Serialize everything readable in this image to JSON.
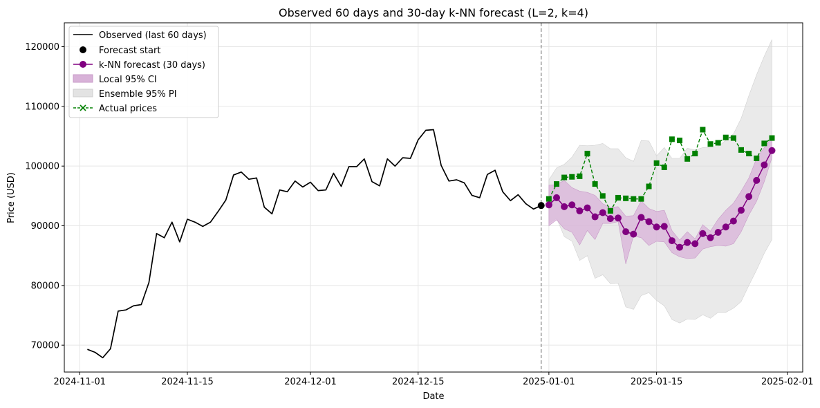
{
  "chart_data": {
    "type": "line",
    "title": "Observed 60 days and 30-day k-NN forecast (L=2, k=4)",
    "xlabel": "Date",
    "ylabel": "Price (USD)",
    "xlim": [
      "2024-10-30",
      "2025-02-03"
    ],
    "ylim": [
      65500,
      124000
    ],
    "grid": true,
    "legend_position": "top-left",
    "x_ticks": [
      "2024-11-01",
      "2024-11-15",
      "2024-12-01",
      "2024-12-15",
      "2025-01-01",
      "2025-01-15",
      "2025-02-01"
    ],
    "y_ticks": [
      70000,
      80000,
      90000,
      100000,
      110000,
      120000
    ],
    "forecast_start_line": "2024-12-31",
    "colors": {
      "observed": "#000000",
      "forecast": "#800080",
      "actual": "#008000",
      "local_ci": "#d8b2d8",
      "ensemble_pi": "#d9d9d9",
      "grid": "#e6e6e6",
      "vline": "#808080"
    },
    "observed": {
      "name": "Observed (last 60 days)",
      "start": "2024-11-02",
      "values": [
        69300,
        68800,
        67900,
        69400,
        75700,
        75900,
        76600,
        76800,
        80500,
        88700,
        88000,
        90600,
        87300,
        91100,
        90600,
        89900,
        90600,
        92400,
        94300,
        98500,
        99000,
        97800,
        98000,
        93100,
        92000,
        96000,
        95700,
        97500,
        96500,
        97300,
        95900,
        96000,
        98800,
        96600,
        99900,
        99900,
        101200,
        97400,
        96700,
        101200,
        100000,
        101400,
        101300,
        104400,
        106000,
        106100,
        100100,
        97500,
        97700,
        97200,
        95100,
        94700,
        98600,
        99300,
        95700,
        94200,
        95200,
        93700,
        92800,
        93400
      ]
    },
    "forecast_start": {
      "name": "Forecast start",
      "date": "2024-12-31",
      "value": 93400
    },
    "forecast": {
      "name": "k-NN forecast (30 days)",
      "start": "2025-01-01",
      "values": [
        93500,
        94700,
        93200,
        93500,
        92500,
        93000,
        91500,
        92200,
        91200,
        91300,
        89000,
        88600,
        91400,
        90700,
        89800,
        89900,
        87500,
        86400,
        87200,
        87000,
        88700,
        88000,
        88900,
        89800,
        90800,
        92600,
        94900,
        97600,
        100200,
        102600
      ],
      "local_ci": {
        "name": "Local 95% CI",
        "lower": [
          90000,
          91000,
          89500,
          88900,
          86800,
          89200,
          87700,
          90400,
          90400,
          90700,
          83600,
          88300,
          88000,
          86700,
          87400,
          87300,
          85500,
          84800,
          84500,
          84600,
          86100,
          86500,
          86700,
          86600,
          87000,
          89000,
          91800,
          94100,
          97400,
          101400
        ],
        "upper": [
          96800,
          96900,
          97600,
          96400,
          95800,
          95600,
          95100,
          93700,
          93100,
          93200,
          91600,
          91700,
          94200,
          92900,
          92400,
          92600,
          89200,
          87600,
          89000,
          87800,
          90200,
          89100,
          91100,
          92600,
          93800,
          95800,
          98000,
          101300,
          103100,
          104800
        ]
      },
      "ensemble_pi": {
        "name": "Ensemble 95% PI",
        "lower": [
          90400,
          91300,
          88200,
          87400,
          84200,
          85000,
          81200,
          81800,
          80300,
          80400,
          76400,
          76000,
          78300,
          78800,
          77500,
          76600,
          74300,
          73700,
          74400,
          74300,
          75100,
          74500,
          75500,
          75500,
          76200,
          77300,
          80000,
          82600,
          85400,
          87700
        ],
        "upper": [
          97700,
          99700,
          100300,
          101500,
          103500,
          103400,
          103500,
          103800,
          102900,
          102900,
          101400,
          100800,
          104300,
          104200,
          101700,
          103100,
          101300,
          101300,
          103000,
          102700,
          103100,
          103200,
          103300,
          104300,
          105400,
          108000,
          111800,
          115300,
          118400,
          121200
        ]
      }
    },
    "actual": {
      "name": "Actual prices",
      "start": "2025-01-01",
      "values": [
        94500,
        97000,
        98100,
        98200,
        98300,
        102100,
        97000,
        95000,
        92500,
        94700,
        94600,
        94500,
        94500,
        96600,
        100500,
        99800,
        104500,
        104300,
        101200,
        102100,
        106100,
        103700,
        103900,
        104800,
        104700,
        102700,
        102100,
        101300,
        103800,
        104700
      ]
    }
  }
}
